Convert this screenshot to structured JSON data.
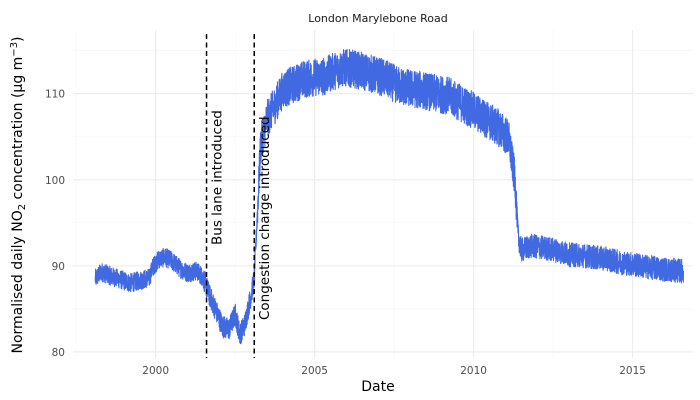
{
  "chart_data": {
    "type": "line",
    "title": "London Marylebone Road",
    "xlabel": "Date",
    "ylabel_parts": [
      "Normalised daily NO",
      "2",
      " concentration (µg m",
      "−3",
      ")"
    ],
    "x_ticks": [
      2000,
      2005,
      2010,
      2015
    ],
    "y_ticks": [
      80,
      90,
      100,
      110
    ],
    "xlim": [
      1997.4,
      2016.9
    ],
    "ylim": [
      79.3,
      117.4
    ],
    "grid": true,
    "series": [
      {
        "color": "#4169e1",
        "points": [
          [
            1998.1,
            88.5
          ],
          [
            1998.3,
            89.3
          ],
          [
            1998.6,
            88.8
          ],
          [
            1998.9,
            88.4
          ],
          [
            1999.2,
            88.0
          ],
          [
            1999.5,
            88.3
          ],
          [
            1999.8,
            88.6
          ],
          [
            1999.9,
            89.8
          ],
          [
            2000.1,
            90.8
          ],
          [
            2000.3,
            91.0
          ],
          [
            2000.5,
            90.6
          ],
          [
            2000.8,
            89.6
          ],
          [
            2001.0,
            89.2
          ],
          [
            2001.3,
            89.4
          ],
          [
            2001.5,
            88.6
          ],
          [
            2001.7,
            86.5
          ],
          [
            2001.9,
            84.8
          ],
          [
            2002.1,
            83.0
          ],
          [
            2002.3,
            82.6
          ],
          [
            2002.5,
            84.4
          ],
          [
            2002.65,
            82.0
          ],
          [
            2002.8,
            83.2
          ],
          [
            2003.0,
            86.6
          ],
          [
            2003.1,
            88.5
          ],
          [
            2003.3,
            104.0
          ],
          [
            2003.5,
            107.0
          ],
          [
            2003.8,
            109.0
          ],
          [
            2004.0,
            110.5
          ],
          [
            2004.3,
            111.0
          ],
          [
            2004.6,
            111.6
          ],
          [
            2005.0,
            111.9
          ],
          [
            2005.3,
            112.0
          ],
          [
            2005.6,
            112.6
          ],
          [
            2005.9,
            113.0
          ],
          [
            2006.2,
            112.9
          ],
          [
            2006.5,
            112.6
          ],
          [
            2006.8,
            112.3
          ],
          [
            2007.2,
            111.8
          ],
          [
            2007.6,
            111.0
          ],
          [
            2008.0,
            110.6
          ],
          [
            2008.4,
            110.4
          ],
          [
            2008.8,
            110.0
          ],
          [
            2009.2,
            109.8
          ],
          [
            2009.6,
            108.9
          ],
          [
            2010.0,
            108.0
          ],
          [
            2010.4,
            107.0
          ],
          [
            2010.8,
            106.0
          ],
          [
            2011.1,
            104.8
          ],
          [
            2011.3,
            100.0
          ],
          [
            2011.4,
            93.5
          ],
          [
            2011.5,
            91.8
          ],
          [
            2011.8,
            92.3
          ],
          [
            2012.2,
            92.1
          ],
          [
            2012.6,
            91.8
          ],
          [
            2013.0,
            91.3
          ],
          [
            2013.4,
            91.2
          ],
          [
            2013.8,
            91.0
          ],
          [
            2014.2,
            90.8
          ],
          [
            2014.6,
            90.4
          ],
          [
            2015.0,
            90.2
          ],
          [
            2015.4,
            89.9
          ],
          [
            2015.8,
            89.7
          ],
          [
            2016.2,
            89.5
          ],
          [
            2016.6,
            89.4
          ]
        ]
      }
    ],
    "annotations": [
      {
        "x": 2001.6,
        "label": "Bus lane introduced"
      },
      {
        "x": 2003.1,
        "label": "Congestion charge introduced"
      }
    ]
  }
}
